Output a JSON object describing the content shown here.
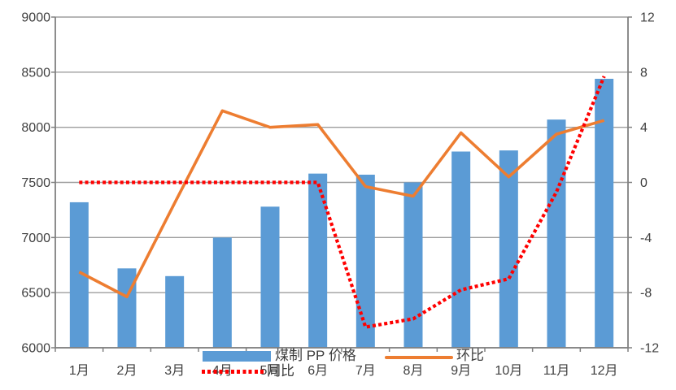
{
  "chart_data": {
    "type": "combo",
    "title": "",
    "categories": [
      "1月",
      "2月",
      "3月",
      "4月",
      "5月",
      "6月",
      "7月",
      "8月",
      "9月",
      "10月",
      "11月",
      "12月"
    ],
    "series": [
      {
        "name": "煤制 PP 价格",
        "type": "bar",
        "axis": "left",
        "color": "#5B9BD5",
        "values": [
          7320,
          6720,
          6650,
          7000,
          7280,
          7580,
          7570,
          7500,
          7780,
          7790,
          8070,
          8440
        ]
      },
      {
        "name": "环比",
        "type": "line",
        "axis": "right",
        "color": "#ED7D31",
        "values": [
          -6.5,
          -8.3,
          -1.5,
          5.2,
          4.0,
          4.2,
          -0.3,
          -1.0,
          3.6,
          0.4,
          3.5,
          4.5
        ]
      },
      {
        "name": "同比",
        "type": "line-dotted",
        "axis": "right",
        "color": "#FF0000",
        "values": [
          0,
          0,
          0,
          0,
          0,
          0,
          -10.5,
          -9.9,
          -7.8,
          -7.0,
          -0.7,
          7.7
        ]
      }
    ],
    "left_axis": {
      "min": 6000,
      "max": 9000,
      "step": 500,
      "tick_labels": [
        "9000",
        "8500",
        "8000",
        "7500",
        "7000",
        "6500",
        "6000"
      ]
    },
    "right_axis": {
      "min": -12,
      "max": 12,
      "step": 4,
      "tick_labels": [
        "12",
        "8",
        "4",
        "0",
        "-4",
        "-8",
        "-12"
      ]
    },
    "grid": true,
    "legend_position": "bottom",
    "xlabel": "",
    "ylabel": ""
  },
  "legend": {
    "price": "煤制 PP 价格",
    "mom": "环比",
    "yoy": "同比"
  },
  "colors": {
    "bar": "#5B9BD5",
    "mom_line": "#ED7D31",
    "yoy_line": "#FF0000",
    "gridline": "#9e9e9e",
    "axis_line": "#808080",
    "text": "#404040",
    "background": "#ffffff"
  }
}
